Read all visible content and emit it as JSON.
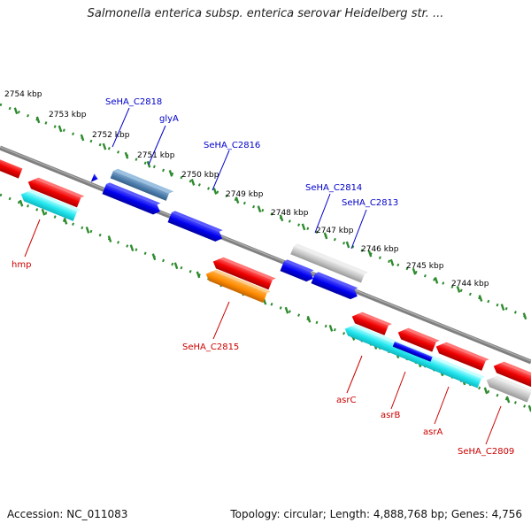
{
  "header": {
    "title": "Salmonella enterica subsp. enterica serovar Heidelberg str. ..."
  },
  "footer": {
    "accession": "Accession: NC_011083",
    "summary": "Topology: circular; Length: 4,888,768 bp; Genes: 4,756"
  },
  "colors": {
    "backbone": "#808080",
    "tick": "#2e8b2e",
    "forward_label": "#0000cc",
    "reverse_label": "#cc0000",
    "scale_text": "#000000"
  },
  "scale_labels": [
    "2754 kbp",
    "2753 kbp",
    "2752 kbp",
    "2751 kbp",
    "2750 kbp",
    "2749 kbp",
    "2748 kbp",
    "2747 kbp",
    "2746 kbp",
    "2745 kbp",
    "2744 kbp"
  ],
  "gene_labels": {
    "forward": [
      "SeHA_C2818",
      "glyA",
      "SeHA_C2816",
      "SeHA_C2814",
      "SeHA_C2813"
    ],
    "reverse": [
      "hmp",
      "SeHA_C2815",
      "asrC",
      "asrB",
      "asrA",
      "SeHA_C2809"
    ]
  }
}
